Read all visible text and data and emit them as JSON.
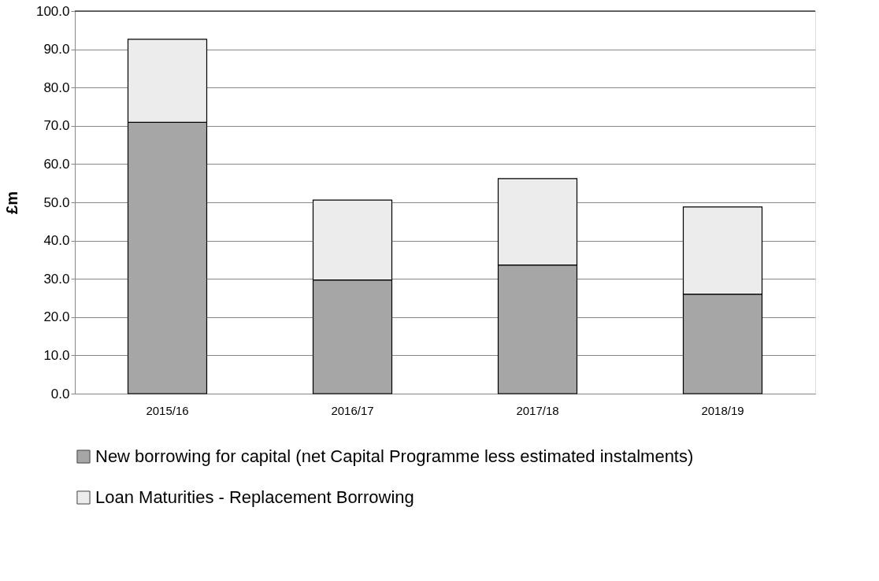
{
  "chart_data": {
    "type": "bar",
    "stacked": true,
    "ylabel": "£m",
    "categories": [
      "2015/16",
      "2016/17",
      "2017/18",
      "2018/19"
    ],
    "series": [
      {
        "name": "New borrowing for capital (net Capital  Programme less estimated instalments)",
        "color": "#a6a6a6",
        "values": [
          70.9,
          29.7,
          33.6,
          26.0
        ]
      },
      {
        "name": "Loan Maturities - Replacement Borrowing",
        "color": "#ececec",
        "values": [
          21.7,
          20.9,
          22.6,
          22.8
        ]
      }
    ],
    "ylim": [
      0,
      100
    ],
    "yticks": [
      {
        "value": 0,
        "label": "0.0"
      },
      {
        "value": 10,
        "label": "10.0"
      },
      {
        "value": 20,
        "label": "20.0"
      },
      {
        "value": 30,
        "label": "30.0"
      },
      {
        "value": 40,
        "label": "40.0"
      },
      {
        "value": 50,
        "label": "50.0"
      },
      {
        "value": 60,
        "label": "60.0"
      },
      {
        "value": 70,
        "label": "70.0"
      },
      {
        "value": 80,
        "label": "80.0"
      },
      {
        "value": 90,
        "label": "90.0"
      },
      {
        "value": 100,
        "label": "100.0"
      }
    ],
    "grid": "y",
    "legend": "bottom"
  }
}
